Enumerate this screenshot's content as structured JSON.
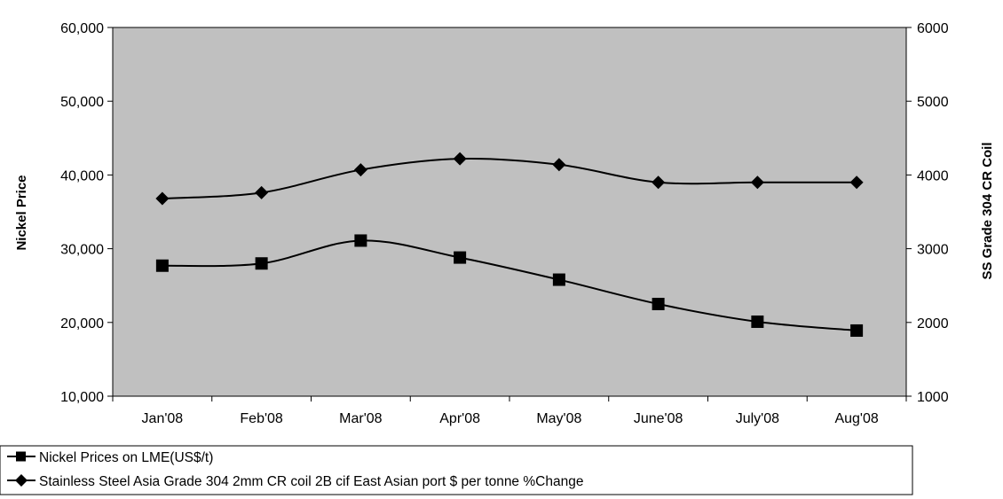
{
  "chart_data": {
    "type": "line",
    "categories": [
      "Jan'08",
      "Feb'08",
      "Mar'08",
      "Apr'08",
      "May'08",
      "June'08",
      "July'08",
      "Aug'08"
    ],
    "series": [
      {
        "name": "Nickel Prices on LME(US$/t)",
        "axis": "left",
        "marker": "square",
        "values": [
          27700,
          28000,
          31100,
          28800,
          25800,
          22500,
          20100,
          18900
        ]
      },
      {
        "name": "Stainless Steel Asia Grade 304 2mm CR coil 2B cif East Asian port $ per tonne %Change",
        "axis": "right",
        "marker": "diamond",
        "values": [
          3680,
          3760,
          4070,
          4220,
          4140,
          3900,
          3900,
          3900
        ]
      }
    ],
    "ylabel": "Nickel Price",
    "y2label": "SS Grade 304 CR Coil",
    "ylim": [
      10000,
      60000
    ],
    "y2lim": [
      1000,
      6000
    ],
    "yticks": [
      "10,000",
      "20,000",
      "30,000",
      "40,000",
      "50,000",
      "60,000"
    ],
    "y2ticks": [
      "1000",
      "2000",
      "3000",
      "4000",
      "5000",
      "6000"
    ],
    "grid": false,
    "legend_position": "bottom",
    "colors": {
      "plot_background": "#c0c0c0",
      "line": "#000000",
      "marker": "#000000"
    }
  }
}
